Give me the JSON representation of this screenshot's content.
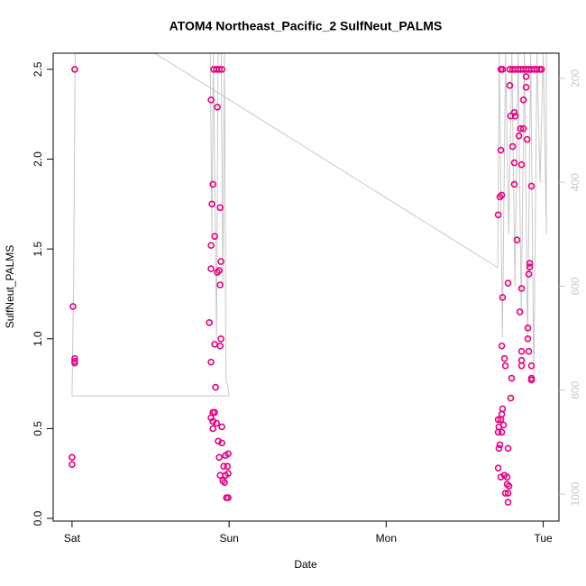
{
  "chart_data": {
    "type": "scatter",
    "title": "ATOM4 Northeast_Pacific_2 SulfNeut_PALMS",
    "x_label": "Date",
    "y_label": "SulfNeut_PALMS",
    "xlim": [
      -0.12,
      3.1
    ],
    "xticks": [
      {
        "value": 0,
        "label": "Sat"
      },
      {
        "value": 1,
        "label": "Sun"
      },
      {
        "value": 2,
        "label": "Mon"
      },
      {
        "value": 3,
        "label": "Tue"
      }
    ],
    "ylim": [
      -0.015,
      2.59
    ],
    "yticks": [
      {
        "value": 0,
        "label": "0.0"
      },
      {
        "value": 0.5,
        "label": "0.5"
      },
      {
        "value": 1,
        "label": "1.0"
      },
      {
        "value": 1.5,
        "label": "1.5"
      },
      {
        "value": 2,
        "label": "2.0"
      },
      {
        "value": 2.5,
        "label": "2.5"
      }
    ],
    "y2lim": [
      1052,
      151.5
    ],
    "y2ticks": [
      200,
      400,
      600,
      800,
      1000
    ],
    "y2_color": "#c8c8c8",
    "series": [
      {
        "color": "#e6007e",
        "x": [
          0.017,
          0.006,
          0.017,
          0.017,
          0.017,
          0,
          0,
          0.902,
          0.92,
          0.937,
          0.954,
          0.885,
          0.897,
          0.891,
          0.908,
          0.885,
          0.885,
          0.937,
          0.925,
          0.948,
          0.943,
          0.925,
          0.943,
          0.874,
          0.948,
          0.943,
          0.908,
          0.885,
          0.914,
          0.897,
          0.908,
          0.885,
          0.897,
          0.92,
          0.897,
          0.954,
          0.931,
          0.954,
          0.937,
          0.977,
          0.994,
          0.966,
          0.989,
          0.943,
          0.977,
          0.994,
          0.96,
          0.971,
          0.983,
          0.994,
          2.73,
          2.741,
          2.787,
          2.805,
          2.822,
          2.839,
          2.856,
          2.874,
          2.891,
          2.908,
          2.925,
          2.943,
          2.96,
          2.977,
          2.989,
          2.713,
          2.724,
          2.736,
          2.73,
          2.736,
          2.741,
          2.753,
          2.759,
          2.787,
          2.776,
          2.793,
          2.805,
          2.816,
          2.822,
          2.816,
          2.816,
          2.833,
          2.845,
          2.856,
          2.874,
          2.862,
          2.874,
          2.862,
          2.851,
          2.862,
          2.862,
          2.862,
          2.897,
          2.891,
          2.891,
          2.914,
          2.914,
          2.908,
          2.902,
          2.902,
          2.908,
          2.925,
          2.925,
          2.925,
          2.925,
          2.799,
          2.793,
          2.713,
          2.73,
          2.718,
          2.718,
          2.724,
          2.713,
          2.736,
          2.736,
          2.741,
          2.747,
          2.73,
          2.753,
          2.77,
          2.77,
          2.782,
          2.759,
          2.776,
          2.776,
          2.776,
          2.713
        ],
        "values": [
          2.5,
          1.18,
          0.89,
          0.875,
          0.865,
          0.34,
          0.3,
          2.5,
          2.5,
          2.5,
          2.5,
          2.33,
          1.86,
          1.75,
          1.57,
          1.52,
          1.39,
          1.38,
          1.37,
          1.43,
          1.73,
          2.29,
          1.3,
          1.09,
          1.0,
          0.96,
          0.97,
          0.87,
          0.73,
          0.59,
          0.59,
          0.56,
          0.54,
          0.53,
          0.5,
          0.51,
          0.43,
          0.42,
          0.34,
          0.35,
          0.36,
          0.29,
          0.29,
          0.24,
          0.24,
          0.25,
          0.21,
          0.2,
          0.115,
          0.115,
          2.5,
          2.5,
          2.5,
          2.5,
          2.5,
          2.5,
          2.5,
          2.5,
          2.5,
          2.5,
          2.5,
          2.5,
          2.5,
          2.5,
          2.5,
          1.69,
          1.79,
          1.8,
          2.05,
          0.96,
          1.23,
          0.89,
          0.85,
          2.41,
          1.31,
          2.24,
          2.07,
          2.26,
          2.24,
          1.98,
          1.86,
          1.55,
          2.13,
          2.17,
          2.17,
          1.97,
          2.33,
          1.28,
          1.15,
          0.93,
          0.88,
          0.85,
          2.11,
          2.4,
          2.46,
          1.42,
          1.4,
          1.36,
          1.06,
          1.0,
          0.93,
          1.85,
          0.85,
          0.78,
          0.77,
          0.78,
          0.67,
          0.55,
          0.55,
          0.51,
          0.39,
          0.41,
          0.28,
          0.48,
          0.58,
          0.61,
          0.52,
          0.23,
          0.24,
          0.23,
          0.19,
          0.18,
          0.14,
          0.14,
          0.09,
          0.39,
          0.48
        ]
      },
      {
        "type": "line",
        "axis": "y2",
        "color": "#c8c8c8",
        "x": [
          0.88,
          0.89,
          0.9,
          0.92,
          0.93,
          0.95,
          0.96,
          0.97,
          0.98,
          0.99,
          1.0,
          0.0,
          0.01,
          0.02,
          0.53,
          2.71,
          2.72,
          2.74,
          2.76,
          2.78,
          2.8,
          2.82,
          2.84,
          2.86,
          2.88,
          2.9,
          2.92,
          2.94,
          2.96,
          2.98,
          3.0,
          3.02,
          3.02
        ],
        "values": [
          152,
          500,
          152,
          700,
          152,
          152,
          600,
          152,
          780,
          790,
          811,
          811,
          600,
          152,
          152,
          564,
          152,
          700,
          152,
          500,
          152,
          600,
          152,
          650,
          152,
          700,
          152,
          780,
          152,
          400,
          152,
          500,
          152
        ]
      }
    ]
  }
}
